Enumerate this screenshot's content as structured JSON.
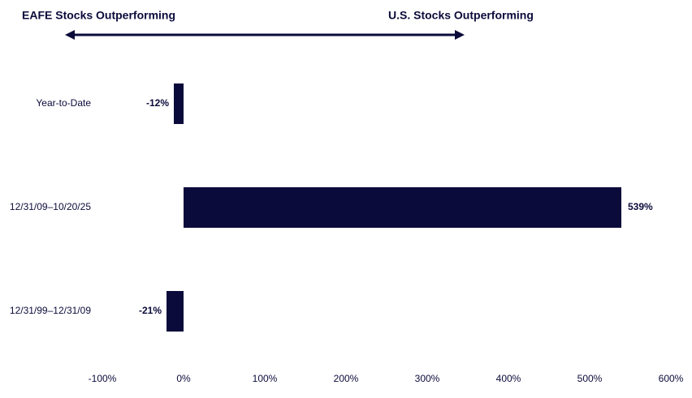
{
  "chart_data": {
    "type": "bar",
    "orientation": "horizontal",
    "annotations": [
      "EAFE Stocks Outperforming",
      "U.S. Stocks Outperforming"
    ],
    "categories": [
      "Year-to-Date",
      "12/31/09–10/20/25",
      "12/31/99–12/31/09"
    ],
    "values": [
      -12,
      539,
      -21
    ],
    "value_labels": [
      "-12%",
      "539%",
      "-21%"
    ],
    "color": "#0b0b3b",
    "xlim": [
      -100,
      600
    ],
    "xticks": [
      {
        "value": -100,
        "label": "-100%"
      },
      {
        "value": 0,
        "label": "0%"
      },
      {
        "value": 100,
        "label": "100%"
      },
      {
        "value": 200,
        "label": "200%"
      },
      {
        "value": 300,
        "label": "300%"
      },
      {
        "value": 400,
        "label": "400%"
      },
      {
        "value": 500,
        "label": "500%"
      },
      {
        "value": 600,
        "label": "600%"
      }
    ],
    "grid": false
  }
}
